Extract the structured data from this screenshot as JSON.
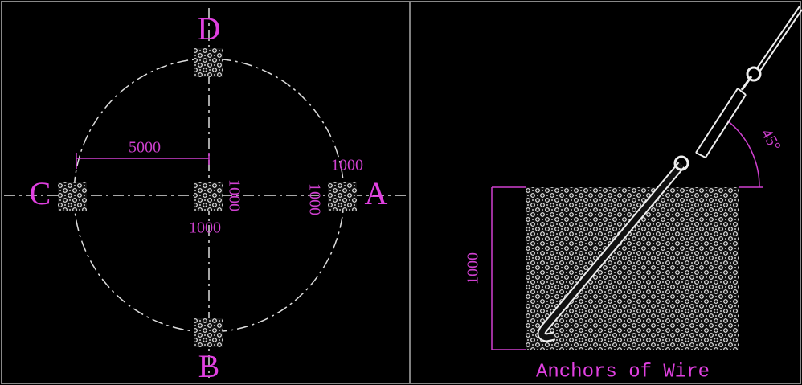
{
  "plan": {
    "points": {
      "top": "D",
      "left": "C",
      "right": "A",
      "bottom": "B"
    },
    "dimensions": {
      "radius": "5000",
      "anchor_width": "1000",
      "anchor_height": "1000",
      "center_height": "1000",
      "center_width": "1000"
    }
  },
  "detail": {
    "depth": "1000",
    "angle": "45°",
    "caption": "Anchors of Wire"
  }
}
